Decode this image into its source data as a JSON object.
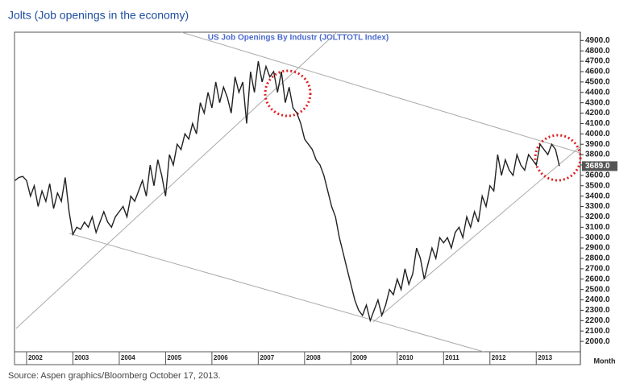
{
  "chart_data": {
    "type": "line",
    "title": "Jolts (Job openings in the economy)",
    "subtitle": "US Job Openings By Industr (JOLTTOTL Index)",
    "x_label": "Month",
    "source": "Source: Aspen graphics/Bloomberg October 17, 2013.",
    "categories": [
      null,
      null,
      null,
      "2002",
      null,
      null,
      null,
      null,
      null,
      null,
      null,
      null,
      null,
      null,
      null,
      "2003",
      null,
      null,
      null,
      null,
      null,
      null,
      null,
      null,
      null,
      null,
      null,
      "2004",
      null,
      null,
      null,
      null,
      null,
      null,
      null,
      null,
      null,
      null,
      null,
      "2005",
      null,
      null,
      null,
      null,
      null,
      null,
      null,
      null,
      null,
      null,
      null,
      "2006",
      null,
      null,
      null,
      null,
      null,
      null,
      null,
      null,
      null,
      null,
      null,
      "2007",
      null,
      null,
      null,
      null,
      null,
      null,
      null,
      null,
      null,
      null,
      null,
      "2008",
      null,
      null,
      null,
      null,
      null,
      null,
      null,
      null,
      null,
      null,
      null,
      "2009",
      null,
      null,
      null,
      null,
      null,
      null,
      null,
      null,
      null,
      null,
      null,
      "2010",
      null,
      null,
      null,
      null,
      null,
      null,
      null,
      null,
      null,
      null,
      null,
      "2011",
      null,
      null,
      null,
      null,
      null,
      null,
      null,
      null,
      null,
      null,
      null,
      "2012",
      null,
      null,
      null,
      null,
      null,
      null,
      null,
      null,
      null,
      null,
      null,
      "2013",
      null,
      null,
      null,
      null,
      null,
      null
    ],
    "series": [
      {
        "color": "#222222",
        "values": [
          3550,
          3580,
          3590,
          3550,
          3400,
          3500,
          3300,
          3450,
          3350,
          3520,
          3280,
          3430,
          3350,
          3580,
          3250,
          3030,
          3100,
          3080,
          3150,
          3100,
          3200,
          3050,
          3150,
          3250,
          3150,
          3100,
          3200,
          3250,
          3300,
          3200,
          3400,
          3350,
          3450,
          3550,
          3400,
          3700,
          3500,
          3750,
          3600,
          3400,
          3800,
          3700,
          3900,
          3850,
          4000,
          3950,
          4100,
          4000,
          4300,
          4200,
          4400,
          4250,
          4500,
          4300,
          4450,
          4350,
          4200,
          4550,
          4400,
          4500,
          4100,
          4600,
          4400,
          4700,
          4500,
          4650,
          4550,
          4600,
          4400,
          4600,
          4300,
          4450,
          4250,
          4200,
          4100,
          3950,
          3900,
          3850,
          3750,
          3700,
          3600,
          3450,
          3300,
          3200,
          3000,
          2850,
          2700,
          2550,
          2400,
          2300,
          2250,
          2350,
          2200,
          2300,
          2400,
          2250,
          2350,
          2500,
          2450,
          2600,
          2500,
          2700,
          2550,
          2650,
          2900,
          2800,
          2600,
          2750,
          2900,
          2800,
          3000,
          2950,
          3000,
          2900,
          3050,
          3100,
          3000,
          3200,
          3100,
          3250,
          3150,
          3400,
          3300,
          3500,
          3450,
          3800,
          3600,
          3750,
          3650,
          3600,
          3800,
          3700,
          3650,
          3800,
          3750,
          3700,
          3900,
          3850,
          3800,
          3900,
          3850,
          3689
        ],
        "value_labels": [
          null,
          null,
          null,
          null,
          null,
          null,
          null,
          null,
          null,
          null,
          null,
          null,
          null,
          null,
          null,
          null,
          null,
          null,
          null,
          null,
          null,
          null,
          null,
          null,
          null,
          null,
          null,
          null,
          null,
          null,
          null,
          null,
          null,
          null,
          null,
          null,
          null,
          null,
          null,
          null,
          null,
          null,
          null,
          null,
          null,
          null,
          null,
          null,
          null,
          null,
          null,
          null,
          null,
          null,
          null,
          null,
          null,
          null,
          null,
          null,
          null,
          null,
          null,
          null,
          null,
          null,
          null,
          null,
          null,
          null,
          null,
          null,
          null,
          null,
          null,
          null,
          null,
          null,
          null,
          null,
          null,
          null,
          null,
          null,
          null,
          null,
          null,
          null,
          null,
          null,
          null,
          null,
          null,
          null,
          null,
          null,
          null,
          null,
          null,
          null,
          null,
          null,
          null,
          null,
          null,
          null,
          null,
          null,
          null,
          null,
          null,
          null,
          null,
          null,
          null,
          null,
          null,
          null,
          null,
          null,
          null,
          null,
          null,
          null,
          null,
          null,
          null,
          null,
          null,
          null,
          null,
          null,
          null,
          null,
          null,
          null,
          null,
          null,
          null,
          null,
          null,
          "3689.0"
        ]
      }
    ],
    "ylim": [
      1900,
      4980
    ],
    "yticks": [
      {
        "value": 2000,
        "label": "2000.0"
      },
      {
        "value": 2100,
        "label": "2100.0"
      },
      {
        "value": 2200,
        "label": "2200.0"
      },
      {
        "value": 2300,
        "label": "2300.0"
      },
      {
        "value": 2400,
        "label": "2400.0"
      },
      {
        "value": 2500,
        "label": "2500.0"
      },
      {
        "value": 2600,
        "label": "2600.0"
      },
      {
        "value": 2700,
        "label": "2700.0"
      },
      {
        "value": 2800,
        "label": "2800.0"
      },
      {
        "value": 2900,
        "label": "2900.0"
      },
      {
        "value": 3000,
        "label": "3000.0"
      },
      {
        "value": 3100,
        "label": "3100.0"
      },
      {
        "value": 3200,
        "label": "3200.0"
      },
      {
        "value": 3300,
        "label": "3300.0"
      },
      {
        "value": 3400,
        "label": "3400.0"
      },
      {
        "value": 3500,
        "label": "3500.0"
      },
      {
        "value": 3600,
        "label": "3600.0"
      },
      {
        "value": 3700,
        "label": "3700.0"
      },
      {
        "value": 3800,
        "label": "3800.0"
      },
      {
        "value": 3900,
        "label": "3900.0"
      },
      {
        "value": 4000,
        "label": "4000.0"
      },
      {
        "value": 4100,
        "label": "4100.0"
      },
      {
        "value": 4200,
        "label": "4200.0"
      },
      {
        "value": 4300,
        "label": "4300.0"
      },
      {
        "value": 4400,
        "label": "4400.0"
      },
      {
        "value": 4500,
        "label": "4500.0"
      },
      {
        "value": 4600,
        "label": "4600.0"
      },
      {
        "value": 4700,
        "label": "4700.0"
      },
      {
        "value": 4800,
        "label": "4800.0"
      },
      {
        "value": 4900,
        "label": "4900.0"
      }
    ],
    "y_axis_side": "right"
  }
}
